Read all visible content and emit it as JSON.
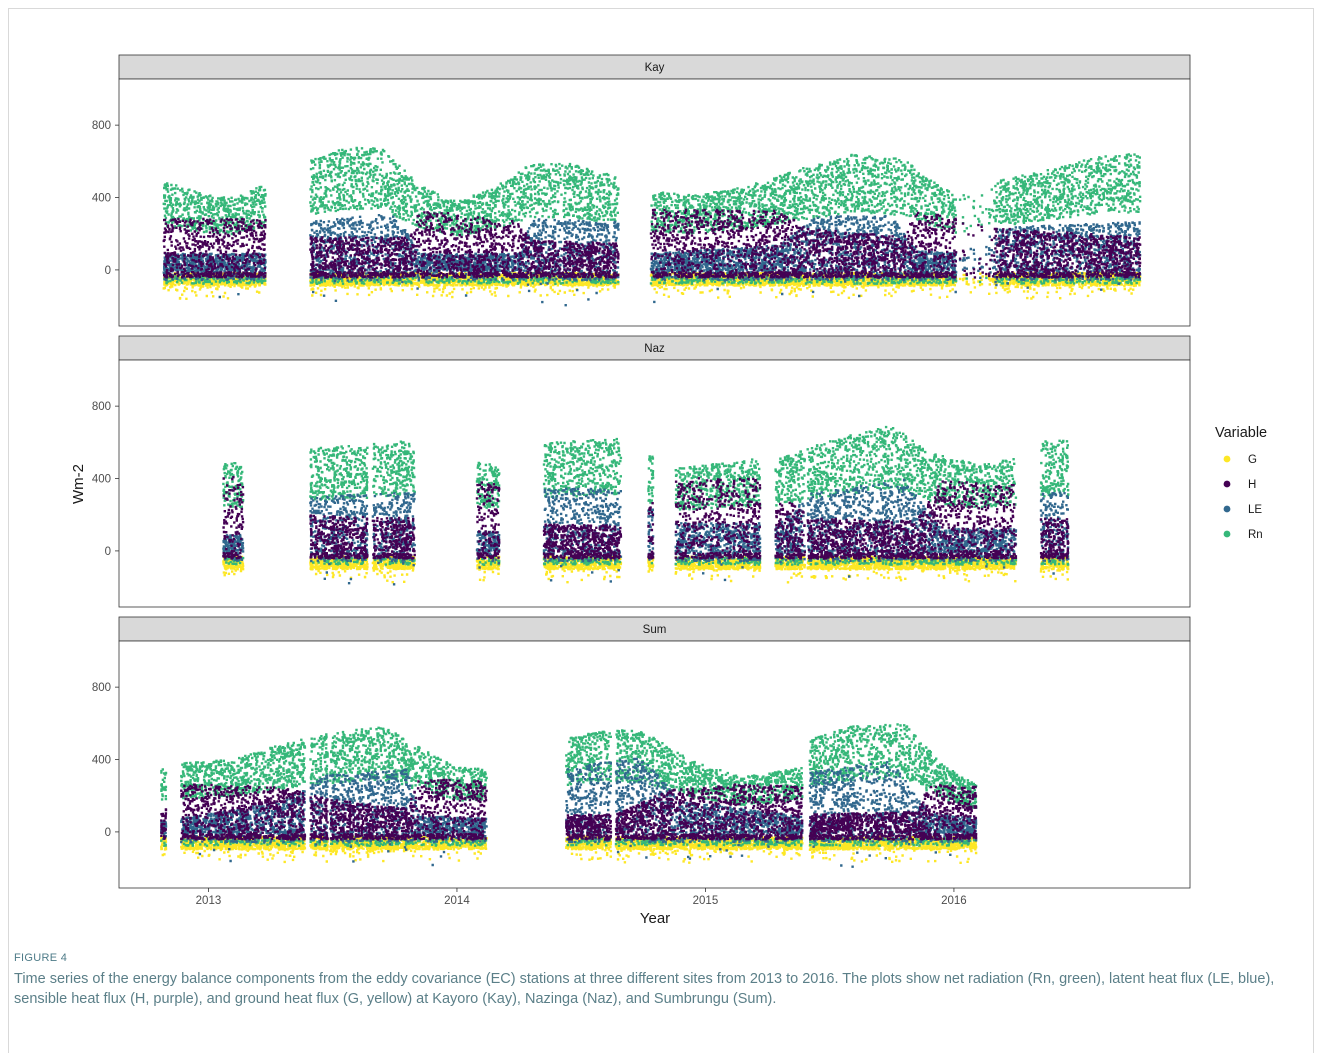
{
  "figure": {
    "label": "FIGURE 4",
    "caption": "Time series of the energy balance components from the eddy covariance (EC) stations at three different sites from 2013 to 2016. The plots show net radiation (Rn, green), latent heat flux (LE, blue), sensible heat flux (H, purple), and ground heat flux (G, yellow) at Kayoro (Kay), Nazinga (Naz), and Sumbrungu (Sum)."
  },
  "chart_data": {
    "type": "scatter",
    "facets": [
      "Kay",
      "Naz",
      "Sum"
    ],
    "xlabel": "Year",
    "ylabel": "Wm-2",
    "xlim": [
      2012.64,
      2016.95
    ],
    "ylim": [
      -310,
      1055
    ],
    "x_ticks": [
      2013,
      2014,
      2015,
      2016
    ],
    "y_ticks": [
      0,
      400,
      800
    ],
    "legend": {
      "title": "Variable",
      "position": "right",
      "entries": [
        {
          "name": "G",
          "color": "#fde725"
        },
        {
          "name": "H",
          "color": "#440154"
        },
        {
          "name": "LE",
          "color": "#31688e"
        },
        {
          "name": "Rn",
          "color": "#35b779"
        }
      ]
    },
    "panels": [
      {
        "name": "Kay",
        "segments": [
          {
            "x": [
              2012.82,
              2013.23
            ]
          },
          {
            "x": [
              2013.41,
              2014.65
            ]
          },
          {
            "x": [
              2014.78,
              2016.01
            ]
          },
          {
            "x": [
              2016.02,
              2016.17
            ],
            "sparse": true
          },
          {
            "x": [
              2016.17,
              2016.75
            ]
          }
        ],
        "Rn_profile": [
          [
            2012.82,
            450
          ],
          [
            2012.9,
            420
          ],
          [
            2013.0,
            380
          ],
          [
            2013.1,
            370
          ],
          [
            2013.23,
            440
          ],
          [
            2013.41,
            560
          ],
          [
            2013.55,
            620
          ],
          [
            2013.7,
            620
          ],
          [
            2013.85,
            430
          ],
          [
            2014.0,
            350
          ],
          [
            2014.15,
            420
          ],
          [
            2014.3,
            540
          ],
          [
            2014.45,
            540
          ],
          [
            2014.65,
            480
          ],
          [
            2014.78,
            400
          ],
          [
            2014.95,
            380
          ],
          [
            2015.15,
            420
          ],
          [
            2015.4,
            520
          ],
          [
            2015.6,
            590
          ],
          [
            2015.8,
            560
          ],
          [
            2015.9,
            460
          ],
          [
            2016.01,
            380
          ],
          [
            2016.17,
            450
          ],
          [
            2016.4,
            520
          ],
          [
            2016.6,
            580
          ],
          [
            2016.75,
            590
          ]
        ],
        "H_profile": [
          [
            2012.82,
            170
          ],
          [
            2013.23,
            170
          ],
          [
            2013.41,
            110
          ],
          [
            2013.8,
            110
          ],
          [
            2013.85,
            200
          ],
          [
            2014.05,
            180
          ],
          [
            2014.25,
            160
          ],
          [
            2014.3,
            100
          ],
          [
            2014.65,
            90
          ],
          [
            2014.78,
            200
          ],
          [
            2015.3,
            200
          ],
          [
            2015.4,
            140
          ],
          [
            2015.8,
            110
          ],
          [
            2015.85,
            200
          ],
          [
            2016.01,
            170
          ],
          [
            2016.17,
            140
          ],
          [
            2016.75,
            110
          ]
        ],
        "LE_profile": [
          [
            2012.82,
            60
          ],
          [
            2013.23,
            60
          ],
          [
            2013.41,
            170
          ],
          [
            2013.75,
            200
          ],
          [
            2013.85,
            60
          ],
          [
            2014.25,
            60
          ],
          [
            2014.3,
            180
          ],
          [
            2014.65,
            170
          ],
          [
            2014.78,
            60
          ],
          [
            2015.3,
            90
          ],
          [
            2015.45,
            190
          ],
          [
            2015.75,
            190
          ],
          [
            2015.85,
            70
          ],
          [
            2016.01,
            60
          ],
          [
            2016.17,
            150
          ],
          [
            2016.75,
            170
          ]
        ],
        "G_profile": [
          [
            2012.82,
            -45
          ],
          [
            2016.75,
            -45
          ]
        ]
      },
      {
        "name": "Naz",
        "segments": [
          {
            "x": [
              2013.06,
              2013.14
            ]
          },
          {
            "x": [
              2013.41,
              2013.64
            ]
          },
          {
            "x": [
              2013.66,
              2013.83
            ]
          },
          {
            "x": [
              2014.08,
              2014.17
            ]
          },
          {
            "x": [
              2014.35,
              2014.66
            ]
          },
          {
            "x": [
              2014.77,
              2014.79
            ]
          },
          {
            "x": [
              2014.88,
              2015.22
            ]
          },
          {
            "x": [
              2015.28,
              2015.4
            ]
          },
          {
            "x": [
              2015.41,
              2016.25
            ]
          },
          {
            "x": [
              2016.35,
              2016.46
            ]
          }
        ],
        "Rn_profile": [
          [
            2013.06,
            460
          ],
          [
            2013.14,
            440
          ],
          [
            2013.41,
            520
          ],
          [
            2013.83,
            560
          ],
          [
            2014.08,
            450
          ],
          [
            2014.17,
            440
          ],
          [
            2014.35,
            550
          ],
          [
            2014.66,
            570
          ],
          [
            2014.88,
            420
          ],
          [
            2015.22,
            470
          ],
          [
            2015.28,
            460
          ],
          [
            2015.5,
            560
          ],
          [
            2015.75,
            640
          ],
          [
            2015.9,
            500
          ],
          [
            2016.1,
            440
          ],
          [
            2016.25,
            470
          ],
          [
            2016.35,
            560
          ],
          [
            2016.46,
            560
          ]
        ],
        "H_profile": [
          [
            2013.06,
            250
          ],
          [
            2013.14,
            240
          ],
          [
            2013.41,
            120
          ],
          [
            2013.83,
            110
          ],
          [
            2014.08,
            230
          ],
          [
            2014.17,
            220
          ],
          [
            2014.35,
            90
          ],
          [
            2014.66,
            90
          ],
          [
            2014.88,
            240
          ],
          [
            2015.22,
            240
          ],
          [
            2015.28,
            170
          ],
          [
            2015.4,
            150
          ],
          [
            2015.41,
            110
          ],
          [
            2015.85,
            100
          ],
          [
            2015.95,
            230
          ],
          [
            2016.25,
            220
          ],
          [
            2016.35,
            120
          ],
          [
            2016.46,
            110
          ]
        ],
        "LE_profile": [
          [
            2013.06,
            60
          ],
          [
            2013.14,
            60
          ],
          [
            2013.41,
            190
          ],
          [
            2013.83,
            210
          ],
          [
            2014.08,
            70
          ],
          [
            2014.17,
            70
          ],
          [
            2014.35,
            220
          ],
          [
            2014.66,
            220
          ],
          [
            2014.88,
            100
          ],
          [
            2015.22,
            100
          ],
          [
            2015.28,
            80
          ],
          [
            2015.41,
            200
          ],
          [
            2015.8,
            250
          ],
          [
            2015.95,
            80
          ],
          [
            2016.25,
            80
          ],
          [
            2016.35,
            200
          ],
          [
            2016.46,
            210
          ]
        ],
        "G_profile": [
          [
            2013.06,
            -60
          ],
          [
            2016.46,
            -60
          ]
        ]
      },
      {
        "name": "Sum",
        "segments": [
          {
            "x": [
              2012.81,
              2012.83
            ]
          },
          {
            "x": [
              2012.89,
              2013.39
            ]
          },
          {
            "x": [
              2013.41,
              2013.48
            ]
          },
          {
            "x": [
              2013.49,
              2014.12
            ]
          },
          {
            "x": [
              2014.44,
              2014.62
            ]
          },
          {
            "x": [
              2014.64,
              2015.39
            ]
          },
          {
            "x": [
              2015.42,
              2016.09
            ]
          }
        ],
        "Rn_profile": [
          [
            2012.81,
            330
          ],
          [
            2012.89,
            350
          ],
          [
            2013.1,
            370
          ],
          [
            2013.3,
            450
          ],
          [
            2013.48,
            500
          ],
          [
            2013.7,
            540
          ],
          [
            2013.85,
            430
          ],
          [
            2014.0,
            330
          ],
          [
            2014.12,
            320
          ],
          [
            2014.44,
            480
          ],
          [
            2014.62,
            520
          ],
          [
            2014.75,
            510
          ],
          [
            2014.95,
            360
          ],
          [
            2015.15,
            280
          ],
          [
            2015.39,
            330
          ],
          [
            2015.42,
            470
          ],
          [
            2015.6,
            540
          ],
          [
            2015.8,
            550
          ],
          [
            2015.95,
            350
          ],
          [
            2016.09,
            240
          ]
        ],
        "H_profile": [
          [
            2012.81,
            60
          ],
          [
            2012.89,
            160
          ],
          [
            2013.3,
            150
          ],
          [
            2013.48,
            110
          ],
          [
            2013.8,
            80
          ],
          [
            2013.85,
            180
          ],
          [
            2014.12,
            170
          ],
          [
            2014.44,
            60
          ],
          [
            2014.62,
            60
          ],
          [
            2014.64,
            60
          ],
          [
            2014.85,
            140
          ],
          [
            2015.15,
            160
          ],
          [
            2015.39,
            150
          ],
          [
            2015.42,
            60
          ],
          [
            2015.85,
            70
          ],
          [
            2015.9,
            160
          ],
          [
            2016.09,
            150
          ]
        ],
        "LE_profile": [
          [
            2012.81,
            40
          ],
          [
            2012.89,
            50
          ],
          [
            2013.3,
            110
          ],
          [
            2013.48,
            200
          ],
          [
            2013.8,
            220
          ],
          [
            2013.85,
            60
          ],
          [
            2014.12,
            50
          ],
          [
            2014.44,
            220
          ],
          [
            2014.62,
            250
          ],
          [
            2014.75,
            260
          ],
          [
            2014.9,
            110
          ],
          [
            2015.39,
            60
          ],
          [
            2015.42,
            210
          ],
          [
            2015.75,
            250
          ],
          [
            2015.9,
            70
          ],
          [
            2016.09,
            50
          ]
        ],
        "G_profile": [
          [
            2012.81,
            -55
          ],
          [
            2016.09,
            -55
          ]
        ]
      }
    ]
  }
}
